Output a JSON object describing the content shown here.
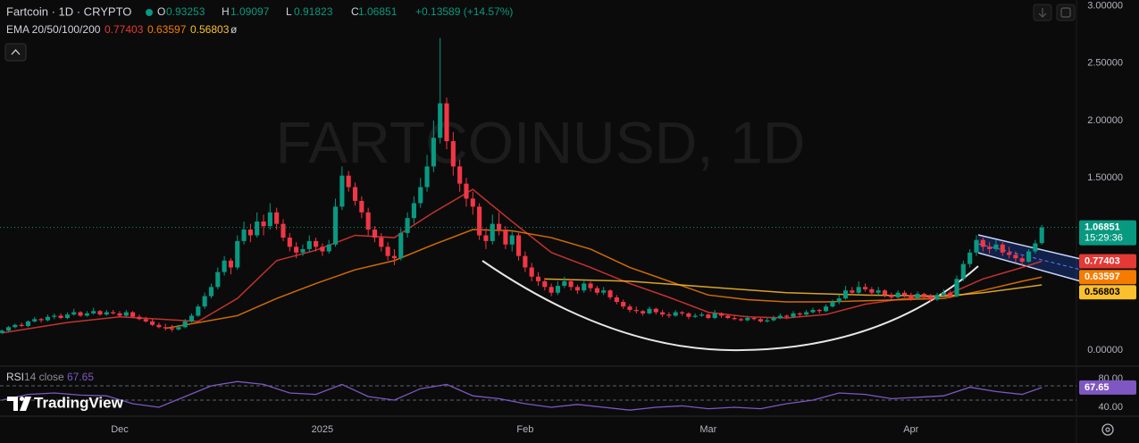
{
  "branding": "TradingView",
  "chart_data": [
    {
      "type": "candlestick",
      "title": "Fartcoin · 1D · CRYPTO",
      "watermark": "FARTCOINUSD, 1D",
      "ohlc_labels": [
        "O",
        "H",
        "L",
        "C"
      ],
      "change": "+0.13589 (+14.57%)",
      "indicator_label": "EMA 20/50/100/200",
      "indicator_missing": "ø",
      "countdown": "15:29:36",
      "up_color": "#089981",
      "down_color": "#f23645",
      "xlim": [
        -0.3,
        164.3
      ],
      "ylim": [
        -0.14,
        3.05
      ],
      "xticks": [
        {
          "value": 18,
          "label": "Dec"
        },
        {
          "value": 49,
          "label": "2025"
        },
        {
          "value": 80,
          "label": "Feb"
        },
        {
          "value": 108,
          "label": "Mar"
        },
        {
          "value": 139,
          "label": "Apr"
        }
      ],
      "yticks": [
        {
          "value": 3,
          "label": "3.00000"
        },
        {
          "value": 2.5,
          "label": "2.50000"
        },
        {
          "value": 2,
          "label": "2.00000"
        },
        {
          "value": 1.5,
          "label": "1.50000"
        },
        {
          "value": 0,
          "label": "0.00000"
        }
      ],
      "candles": [
        [
          0.15,
          0.18,
          0.14,
          0.17
        ],
        [
          0.17,
          0.21,
          0.16,
          0.2
        ],
        [
          0.2,
          0.23,
          0.19,
          0.22
        ],
        [
          0.22,
          0.24,
          0.2,
          0.21
        ],
        [
          0.21,
          0.26,
          0.2,
          0.25
        ],
        [
          0.25,
          0.29,
          0.24,
          0.27
        ],
        [
          0.27,
          0.28,
          0.24,
          0.26
        ],
        [
          0.26,
          0.31,
          0.25,
          0.29
        ],
        [
          0.29,
          0.32,
          0.27,
          0.3
        ],
        [
          0.3,
          0.32,
          0.27,
          0.28
        ],
        [
          0.28,
          0.33,
          0.27,
          0.31
        ],
        [
          0.31,
          0.36,
          0.3,
          0.33
        ],
        [
          0.33,
          0.34,
          0.29,
          0.3
        ],
        [
          0.3,
          0.34,
          0.29,
          0.32
        ],
        [
          0.32,
          0.37,
          0.31,
          0.34
        ],
        [
          0.34,
          0.35,
          0.3,
          0.31
        ],
        [
          0.31,
          0.35,
          0.3,
          0.33
        ],
        [
          0.33,
          0.35,
          0.31,
          0.32
        ],
        [
          0.32,
          0.34,
          0.29,
          0.3
        ],
        [
          0.3,
          0.35,
          0.29,
          0.33
        ],
        [
          0.33,
          0.34,
          0.28,
          0.29
        ],
        [
          0.29,
          0.31,
          0.26,
          0.27
        ],
        [
          0.27,
          0.29,
          0.24,
          0.25
        ],
        [
          0.25,
          0.27,
          0.21,
          0.22
        ],
        [
          0.22,
          0.24,
          0.19,
          0.2
        ],
        [
          0.2,
          0.23,
          0.17,
          0.19
        ],
        [
          0.19,
          0.22,
          0.16,
          0.18
        ],
        [
          0.18,
          0.22,
          0.17,
          0.2
        ],
        [
          0.2,
          0.27,
          0.19,
          0.25
        ],
        [
          0.25,
          0.32,
          0.24,
          0.3
        ],
        [
          0.3,
          0.4,
          0.29,
          0.38
        ],
        [
          0.38,
          0.5,
          0.36,
          0.47
        ],
        [
          0.47,
          0.58,
          0.45,
          0.55
        ],
        [
          0.55,
          0.72,
          0.53,
          0.68
        ],
        [
          0.68,
          0.82,
          0.65,
          0.78
        ],
        [
          0.78,
          0.8,
          0.66,
          0.72
        ],
        [
          0.72,
          1.0,
          0.7,
          0.95
        ],
        [
          0.95,
          1.12,
          0.92,
          1.05
        ],
        [
          1.05,
          1.1,
          0.94,
          1.0
        ],
        [
          1.0,
          1.2,
          0.98,
          1.12
        ],
        [
          1.12,
          1.18,
          1.0,
          1.08
        ],
        [
          1.08,
          1.28,
          1.05,
          1.2
        ],
        [
          1.2,
          1.24,
          1.05,
          1.1
        ],
        [
          1.1,
          1.14,
          0.95,
          0.98
        ],
        [
          0.98,
          1.02,
          0.86,
          0.9
        ],
        [
          0.9,
          0.94,
          0.8,
          0.85
        ],
        [
          0.85,
          0.92,
          0.82,
          0.88
        ],
        [
          0.88,
          1.0,
          0.85,
          0.95
        ],
        [
          0.95,
          0.98,
          0.86,
          0.9
        ],
        [
          0.9,
          0.93,
          0.82,
          0.86
        ],
        [
          0.86,
          0.96,
          0.84,
          0.92
        ],
        [
          0.92,
          1.32,
          0.9,
          1.25
        ],
        [
          1.25,
          1.6,
          1.22,
          1.52
        ],
        [
          1.52,
          1.56,
          1.38,
          1.42
        ],
        [
          1.42,
          1.46,
          1.26,
          1.3
        ],
        [
          1.3,
          1.34,
          1.15,
          1.2
        ],
        [
          1.2,
          1.24,
          1.0,
          1.05
        ],
        [
          1.05,
          1.08,
          0.94,
          0.98
        ],
        [
          0.98,
          1.02,
          0.86,
          0.9
        ],
        [
          0.9,
          0.94,
          0.78,
          0.82
        ],
        [
          0.82,
          0.88,
          0.74,
          0.8
        ],
        [
          0.8,
          1.06,
          0.78,
          1.02
        ],
        [
          1.02,
          1.2,
          0.98,
          1.15
        ],
        [
          1.15,
          1.34,
          1.1,
          1.28
        ],
        [
          1.28,
          1.5,
          1.24,
          1.42
        ],
        [
          1.42,
          1.7,
          1.38,
          1.6
        ],
        [
          1.6,
          2.0,
          1.55,
          1.85
        ],
        [
          1.85,
          2.72,
          1.8,
          2.15
        ],
        [
          2.15,
          2.2,
          1.75,
          1.82
        ],
        [
          1.82,
          1.9,
          1.52,
          1.6
        ],
        [
          1.6,
          1.66,
          1.38,
          1.45
        ],
        [
          1.45,
          1.5,
          1.25,
          1.32
        ],
        [
          1.32,
          1.38,
          1.18,
          1.25
        ],
        [
          1.25,
          1.28,
          0.96,
          1.0
        ],
        [
          1.0,
          1.06,
          0.88,
          0.95
        ],
        [
          0.95,
          1.18,
          0.92,
          1.1
        ],
        [
          1.1,
          1.2,
          1.0,
          1.05
        ],
        [
          1.05,
          1.08,
          0.88,
          0.92
        ],
        [
          0.92,
          1.04,
          0.86,
          1.0
        ],
        [
          1.0,
          1.02,
          0.78,
          0.82
        ],
        [
          0.82,
          0.86,
          0.68,
          0.72
        ],
        [
          0.72,
          0.76,
          0.6,
          0.64
        ],
        [
          0.64,
          0.68,
          0.56,
          0.6
        ],
        [
          0.6,
          0.63,
          0.52,
          0.55
        ],
        [
          0.55,
          0.58,
          0.47,
          0.5
        ],
        [
          0.5,
          0.6,
          0.48,
          0.56
        ],
        [
          0.56,
          0.64,
          0.54,
          0.6
        ],
        [
          0.6,
          0.62,
          0.52,
          0.55
        ],
        [
          0.55,
          0.57,
          0.49,
          0.52
        ],
        [
          0.52,
          0.61,
          0.5,
          0.58
        ],
        [
          0.58,
          0.6,
          0.51,
          0.54
        ],
        [
          0.54,
          0.56,
          0.48,
          0.5
        ],
        [
          0.5,
          0.55,
          0.48,
          0.52
        ],
        [
          0.52,
          0.53,
          0.44,
          0.46
        ],
        [
          0.46,
          0.48,
          0.4,
          0.42
        ],
        [
          0.42,
          0.44,
          0.36,
          0.38
        ],
        [
          0.38,
          0.4,
          0.33,
          0.35
        ],
        [
          0.35,
          0.38,
          0.32,
          0.34
        ],
        [
          0.34,
          0.35,
          0.3,
          0.32
        ],
        [
          0.32,
          0.38,
          0.31,
          0.36
        ],
        [
          0.36,
          0.37,
          0.31,
          0.33
        ],
        [
          0.33,
          0.35,
          0.29,
          0.31
        ],
        [
          0.31,
          0.33,
          0.28,
          0.3
        ],
        [
          0.3,
          0.35,
          0.29,
          0.33
        ],
        [
          0.33,
          0.34,
          0.3,
          0.32
        ],
        [
          0.32,
          0.33,
          0.27,
          0.29
        ],
        [
          0.29,
          0.32,
          0.28,
          0.3
        ],
        [
          0.3,
          0.33,
          0.29,
          0.31
        ],
        [
          0.31,
          0.32,
          0.27,
          0.28
        ],
        [
          0.28,
          0.35,
          0.27,
          0.32
        ],
        [
          0.32,
          0.33,
          0.28,
          0.3
        ],
        [
          0.3,
          0.31,
          0.27,
          0.28
        ],
        [
          0.28,
          0.3,
          0.26,
          0.27
        ],
        [
          0.27,
          0.28,
          0.25,
          0.26
        ],
        [
          0.26,
          0.3,
          0.25,
          0.28
        ],
        [
          0.28,
          0.29,
          0.26,
          0.27
        ],
        [
          0.27,
          0.28,
          0.24,
          0.25
        ],
        [
          0.25,
          0.28,
          0.24,
          0.26
        ],
        [
          0.26,
          0.3,
          0.25,
          0.28
        ],
        [
          0.28,
          0.32,
          0.27,
          0.3
        ],
        [
          0.3,
          0.31,
          0.27,
          0.29
        ],
        [
          0.29,
          0.34,
          0.28,
          0.32
        ],
        [
          0.32,
          0.33,
          0.29,
          0.31
        ],
        [
          0.31,
          0.35,
          0.3,
          0.33
        ],
        [
          0.33,
          0.37,
          0.32,
          0.35
        ],
        [
          0.35,
          0.36,
          0.32,
          0.34
        ],
        [
          0.34,
          0.4,
          0.33,
          0.38
        ],
        [
          0.38,
          0.44,
          0.37,
          0.42
        ],
        [
          0.42,
          0.48,
          0.4,
          0.45
        ],
        [
          0.45,
          0.56,
          0.44,
          0.52
        ],
        [
          0.52,
          0.55,
          0.48,
          0.5
        ],
        [
          0.5,
          0.6,
          0.49,
          0.55
        ],
        [
          0.55,
          0.58,
          0.51,
          0.53
        ],
        [
          0.53,
          0.55,
          0.47,
          0.5
        ],
        [
          0.5,
          0.55,
          0.48,
          0.52
        ],
        [
          0.52,
          0.53,
          0.46,
          0.48
        ],
        [
          0.48,
          0.5,
          0.44,
          0.46
        ],
        [
          0.46,
          0.52,
          0.45,
          0.5
        ],
        [
          0.5,
          0.52,
          0.46,
          0.48
        ],
        [
          0.48,
          0.5,
          0.43,
          0.45
        ],
        [
          0.45,
          0.51,
          0.44,
          0.49
        ],
        [
          0.49,
          0.5,
          0.45,
          0.47
        ],
        [
          0.47,
          0.49,
          0.42,
          0.44
        ],
        [
          0.44,
          0.5,
          0.43,
          0.48
        ],
        [
          0.48,
          0.53,
          0.46,
          0.5
        ],
        [
          0.5,
          0.52,
          0.45,
          0.47
        ],
        [
          0.47,
          0.65,
          0.46,
          0.62
        ],
        [
          0.62,
          0.78,
          0.6,
          0.75
        ],
        [
          0.75,
          0.88,
          0.72,
          0.85
        ],
        [
          0.85,
          1.0,
          0.82,
          0.96
        ],
        [
          0.96,
          0.98,
          0.86,
          0.9
        ],
        [
          0.9,
          0.94,
          0.84,
          0.88
        ],
        [
          0.88,
          0.96,
          0.86,
          0.92
        ],
        [
          0.92,
          0.94,
          0.82,
          0.85
        ],
        [
          0.85,
          0.9,
          0.8,
          0.83
        ],
        [
          0.83,
          0.86,
          0.76,
          0.8
        ],
        [
          0.8,
          0.82,
          0.74,
          0.77
        ],
        [
          0.77,
          0.88,
          0.76,
          0.86
        ],
        [
          0.86,
          0.96,
          0.84,
          0.93
        ],
        [
          0.93253,
          1.09097,
          0.91823,
          1.06851
        ]
      ],
      "series": [
        {
          "color": "#e53935",
          "x": [
            0,
            10,
            18,
            24,
            30,
            36,
            42,
            48,
            54,
            60,
            66,
            72,
            78,
            84,
            90,
            96,
            102,
            108,
            114,
            120,
            126,
            132,
            138,
            144,
            150,
            156,
            159
          ],
          "values": [
            0.15,
            0.24,
            0.29,
            0.27,
            0.25,
            0.45,
            0.78,
            0.87,
            1.0,
            0.98,
            1.2,
            1.4,
            1.12,
            0.85,
            0.72,
            0.58,
            0.46,
            0.33,
            0.29,
            0.28,
            0.31,
            0.4,
            0.45,
            0.47,
            0.62,
            0.72,
            0.77403
          ]
        },
        {
          "color": "#f57c00",
          "x": [
            25,
            36,
            42,
            48,
            54,
            60,
            66,
            72,
            78,
            84,
            90,
            96,
            102,
            108,
            114,
            120,
            126,
            132,
            138,
            144,
            150,
            156,
            159
          ],
          "values": [
            0.19,
            0.3,
            0.45,
            0.58,
            0.7,
            0.78,
            0.92,
            1.05,
            1.04,
            0.98,
            0.88,
            0.72,
            0.6,
            0.48,
            0.44,
            0.42,
            0.42,
            0.43,
            0.44,
            0.45,
            0.52,
            0.6,
            0.63597
          ]
        },
        {
          "color": "#fbc02d",
          "x": [
            83,
            96,
            108,
            120,
            132,
            144,
            150,
            159
          ],
          "values": [
            0.62,
            0.6,
            0.55,
            0.5,
            0.48,
            0.47,
            0.5,
            0.56803
          ]
        }
      ]
    },
    {
      "type": "line",
      "title": "RSI",
      "subtitle": "14 close",
      "xlim": [
        -0.3,
        164.3
      ],
      "ylim": [
        27.5,
        97.5
      ],
      "yticks": [
        {
          "value": 80,
          "label": "80.00"
        },
        {
          "value": 40,
          "label": "40.00"
        }
      ],
      "levels": [
        70,
        50
      ],
      "series": [
        {
          "color": "#7e57c2",
          "x": [
            0,
            4,
            8,
            12,
            16,
            20,
            24,
            28,
            32,
            36,
            40,
            44,
            48,
            52,
            56,
            60,
            64,
            68,
            72,
            76,
            80,
            84,
            88,
            92,
            96,
            100,
            104,
            108,
            112,
            116,
            120,
            124,
            128,
            132,
            136,
            140,
            144,
            148,
            152,
            156,
            159
          ],
          "values": [
            50,
            58,
            60,
            57,
            56,
            45,
            40,
            55,
            70,
            76,
            72,
            60,
            58,
            72,
            55,
            50,
            66,
            72,
            56,
            52,
            45,
            40,
            44,
            40,
            36,
            40,
            42,
            38,
            40,
            38,
            45,
            50,
            60,
            58,
            52,
            54,
            56,
            68,
            62,
            58,
            67.65
          ]
        }
      ]
    }
  ]
}
